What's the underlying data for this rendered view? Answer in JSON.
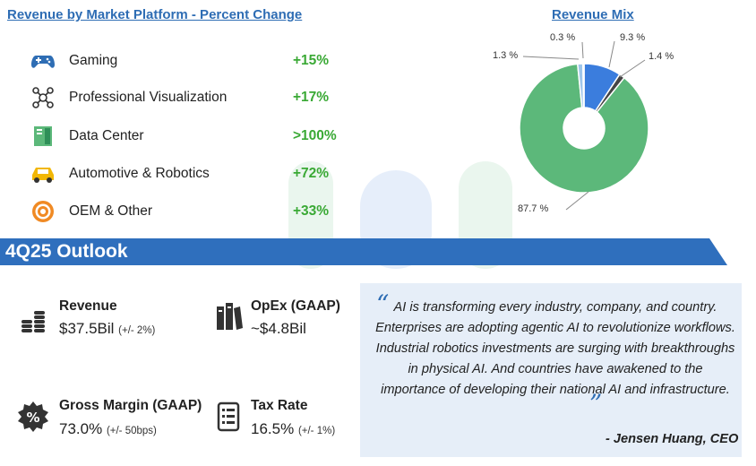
{
  "left_title": "Revenue by Market Platform - Percent Change",
  "right_title": "Revenue Mix",
  "segments": [
    {
      "label": "Gaming",
      "change": "+15%",
      "icon": "gamepad-icon"
    },
    {
      "label": "Professional Visualization",
      "change": "+17%",
      "icon": "molecule-icon"
    },
    {
      "label": "Data Center",
      "change": ">100%",
      "icon": "server-icon"
    },
    {
      "label": "Automotive & Robotics",
      "change": "+72%",
      "icon": "car-icon"
    },
    {
      "label": "OEM & Other",
      "change": "+33%",
      "icon": "target-icon"
    }
  ],
  "chart_data": {
    "type": "pie",
    "title": "Revenue Mix",
    "style": "donut",
    "slices": [
      {
        "label": "87.7 %",
        "value": 87.7,
        "color": "#5cb87a"
      },
      {
        "label": "9.3 %",
        "value": 9.3,
        "color": "#3b7ddd"
      },
      {
        "label": "1.4 %",
        "value": 1.4,
        "color": "#444444"
      },
      {
        "label": "1.3 %",
        "value": 1.3,
        "color": "#9fc6ea"
      },
      {
        "label": "0.3 %",
        "value": 0.3,
        "color": "#f0b400"
      }
    ]
  },
  "outlook": {
    "title": "4Q25 Outlook",
    "revenue": {
      "label": "Revenue",
      "value": "$37.5Bil",
      "note": "(+/- 2%)",
      "icon": "coins-icon"
    },
    "opex": {
      "label": "OpEx (GAAP)",
      "value": "~$4.8Bil",
      "note": "",
      "icon": "books-icon"
    },
    "gross_margin": {
      "label": "Gross Margin (GAAP)",
      "value": "73.0%",
      "note": "(+/- 50bps)",
      "icon": "percent-badge-icon"
    },
    "tax_rate": {
      "label": "Tax Rate",
      "value": "16.5%",
      "note": "(+/- 1%)",
      "icon": "document-icon"
    }
  },
  "quote": {
    "open_mark": "“",
    "close_mark": "”",
    "text": "AI is transforming every industry, company, and country. Enterprises are adopting agentic AI to revolutionize workflows. Industrial robotics investments are surging with breakthroughs in physical AI. And countries have awakened to the importance of developing their national AI and infrastructure.",
    "author": "- Jensen Huang, CEO"
  },
  "colors": {
    "accent_blue": "#2e6db4",
    "banner_blue": "#2f6fbd",
    "positive_green": "#3aa935",
    "quote_bg": "#e6eef8"
  }
}
